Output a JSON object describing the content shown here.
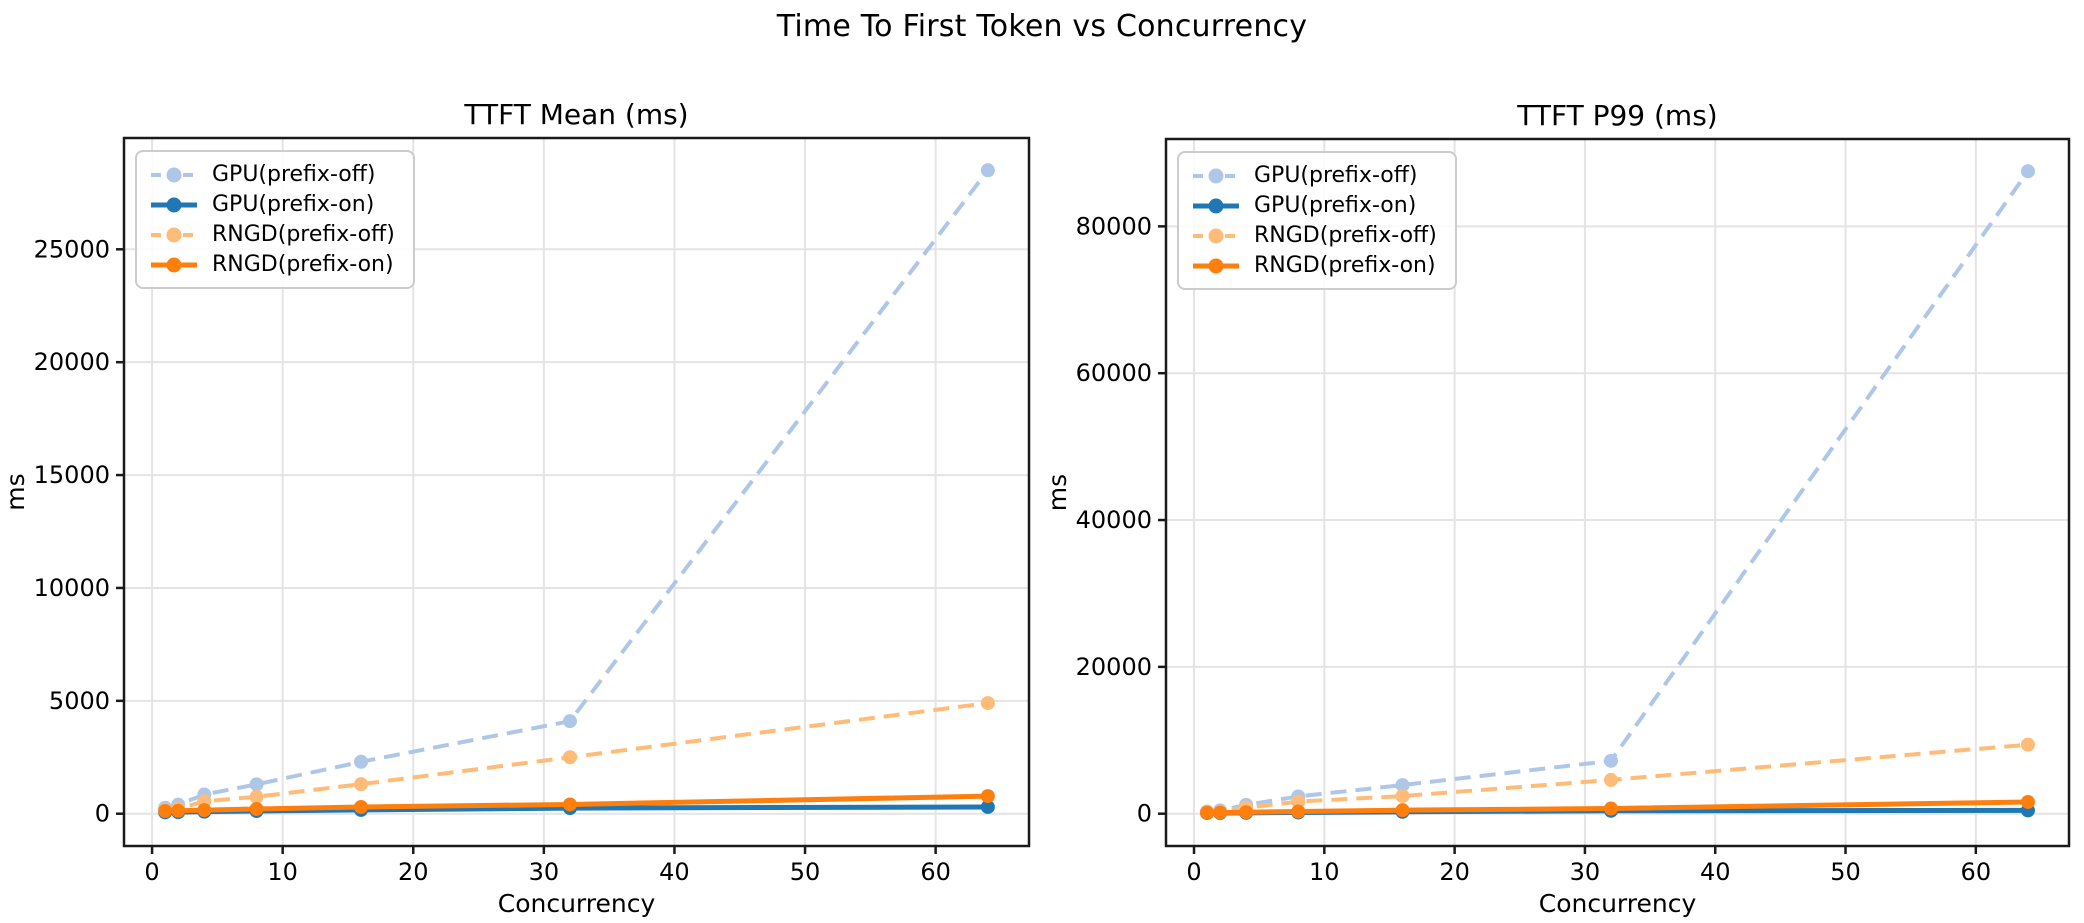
{
  "figure": {
    "suptitle": "Time To First Token vs Concurrency"
  },
  "chart_data": [
    {
      "type": "line",
      "title": "TTFT Mean (ms)",
      "xlabel": "Concurrency",
      "ylabel": "ms",
      "x": [
        1,
        2,
        4,
        8,
        16,
        32,
        64
      ],
      "series": [
        {
          "name": "GPU(prefix-off)",
          "color": "#aec7e8",
          "linestyle": "dashed",
          "marker": "circle",
          "values": [
            260,
            400,
            850,
            1300,
            2300,
            4100,
            28500
          ]
        },
        {
          "name": "GPU(prefix-on)",
          "color": "#1f77b4",
          "linestyle": "solid",
          "marker": "circle",
          "values": [
            60,
            70,
            90,
            120,
            170,
            250,
            300
          ]
        },
        {
          "name": "RNGD(prefix-off)",
          "color": "#ffbb78",
          "linestyle": "dashed",
          "marker": "circle",
          "values": [
            170,
            220,
            550,
            750,
            1310,
            2500,
            4900
          ]
        },
        {
          "name": "RNGD(prefix-on)",
          "color": "#ff7f0e",
          "linestyle": "solid",
          "marker": "circle",
          "values": [
            120,
            130,
            160,
            210,
            300,
            410,
            780
          ]
        }
      ],
      "xticks": [
        0,
        10,
        20,
        30,
        40,
        50,
        60
      ],
      "yticks": [
        0,
        5000,
        10000,
        15000,
        20000,
        25000
      ],
      "xlim": [
        -2.15,
        67.15
      ],
      "ylim": [
        -1430,
        29930
      ],
      "grid": true,
      "legend_position": "upper left"
    },
    {
      "type": "line",
      "title": "TTFT P99 (ms)",
      "xlabel": "Concurrency",
      "ylabel": "ms",
      "x": [
        1,
        2,
        4,
        8,
        16,
        32,
        64
      ],
      "series": [
        {
          "name": "GPU(prefix-off)",
          "color": "#aec7e8",
          "linestyle": "dashed",
          "marker": "circle",
          "values": [
            300,
            450,
            1200,
            2350,
            3900,
            7200,
            87500
          ]
        },
        {
          "name": "GPU(prefix-on)",
          "color": "#1f77b4",
          "linestyle": "solid",
          "marker": "circle",
          "values": [
            80,
            90,
            120,
            170,
            260,
            400,
            450
          ]
        },
        {
          "name": "RNGD(prefix-off)",
          "color": "#ffbb78",
          "linestyle": "dashed",
          "marker": "circle",
          "values": [
            220,
            280,
            800,
            1650,
            2400,
            4600,
            9400
          ]
        },
        {
          "name": "RNGD(prefix-on)",
          "color": "#ff7f0e",
          "linestyle": "solid",
          "marker": "circle",
          "values": [
            130,
            150,
            200,
            300,
            480,
            700,
            1600
          ]
        }
      ],
      "xticks": [
        0,
        10,
        20,
        30,
        40,
        50,
        60
      ],
      "yticks": [
        0,
        20000,
        40000,
        60000,
        80000
      ],
      "xlim": [
        -2.15,
        67.15
      ],
      "ylim": [
        -4400,
        91900
      ],
      "grid": true,
      "legend_position": "upper left"
    }
  ],
  "style": {
    "grid_color": "#e4e4e4",
    "spine_color": "#1a1a1a",
    "background": "#ffffff"
  }
}
